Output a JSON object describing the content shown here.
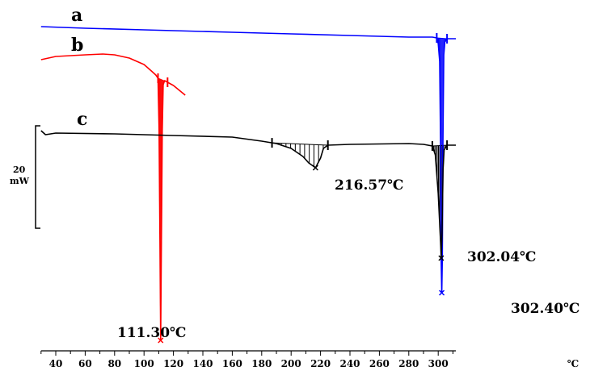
{
  "chart_data": {
    "type": "line",
    "x_unit": "℃",
    "xlim": [
      30,
      312
    ],
    "x_ticks": [
      40,
      60,
      80,
      100,
      120,
      140,
      160,
      180,
      200,
      220,
      240,
      260,
      280,
      300
    ],
    "scale_bar": {
      "line1": "20",
      "line2": "mW"
    },
    "grid": false,
    "series": [
      {
        "name": "a",
        "color": "#0000ff",
        "points": [
          [
            30,
            33
          ],
          [
            60,
            35
          ],
          [
            100,
            37
          ],
          [
            140,
            39
          ],
          [
            160,
            40
          ],
          [
            200,
            42
          ],
          [
            240,
            44
          ],
          [
            280,
            46
          ],
          [
            296,
            46
          ],
          [
            299,
            47
          ],
          [
            300,
            54
          ],
          [
            301,
            76
          ],
          [
            301.6,
            180
          ],
          [
            302,
            320
          ],
          [
            302.4,
            363
          ],
          [
            302.8,
            320
          ],
          [
            303.2,
            180
          ],
          [
            303.8,
            68
          ],
          [
            304.5,
            52
          ],
          [
            306,
            48
          ],
          [
            312,
            48
          ]
        ]
      },
      {
        "name": "b",
        "color": "#ff0000",
        "points": [
          [
            30,
            74
          ],
          [
            40,
            70
          ],
          [
            60,
            68
          ],
          [
            72,
            67
          ],
          [
            80,
            68
          ],
          [
            90,
            72
          ],
          [
            100,
            80
          ],
          [
            105,
            88
          ],
          [
            108,
            93
          ],
          [
            109.5,
            97
          ],
          [
            110.2,
            160
          ],
          [
            110.8,
            300
          ],
          [
            111.3,
            422
          ],
          [
            111.8,
            300
          ],
          [
            112.4,
            160
          ],
          [
            113,
            105
          ],
          [
            114,
            100
          ],
          [
            116,
            102
          ],
          [
            120,
            106
          ],
          [
            124,
            112
          ],
          [
            128,
            118
          ]
        ]
      },
      {
        "name": "c",
        "color": "#000000",
        "points": [
          [
            30,
            162
          ],
          [
            33,
            167
          ],
          [
            40,
            165
          ],
          [
            80,
            166
          ],
          [
            120,
            168
          ],
          [
            160,
            170
          ],
          [
            180,
            175
          ],
          [
            190,
            178
          ],
          [
            200,
            184
          ],
          [
            208,
            194
          ],
          [
            212,
            202
          ],
          [
            216.57,
            208
          ],
          [
            220,
            196
          ],
          [
            222,
            184
          ],
          [
            225,
            180
          ],
          [
            240,
            179
          ],
          [
            280,
            178
          ],
          [
            290,
            179
          ],
          [
            296,
            181
          ],
          [
            298,
            192
          ],
          [
            300,
            240
          ],
          [
            301.6,
            300
          ],
          [
            302.04,
            320
          ],
          [
            302.6,
            290
          ],
          [
            303.3,
            210
          ],
          [
            304,
            186
          ],
          [
            306,
            180
          ],
          [
            312,
            180
          ]
        ]
      }
    ],
    "shaded_peaks": [
      {
        "series": "b",
        "from": 109.5,
        "to": 116
      },
      {
        "series": "a",
        "from": 299,
        "to": 306
      },
      {
        "series": "c",
        "from": 187,
        "to": 225
      },
      {
        "series": "c",
        "from": 296,
        "to": 306
      }
    ],
    "peaks": [
      {
        "series": "b",
        "x": 111.3,
        "label": "111.30℃"
      },
      {
        "series": "c",
        "x": 216.57,
        "label": "216.57℃"
      },
      {
        "series": "c",
        "x": 302.04,
        "label": "302.04℃"
      },
      {
        "series": "a",
        "x": 302.4,
        "label": "302.40℃"
      }
    ]
  }
}
